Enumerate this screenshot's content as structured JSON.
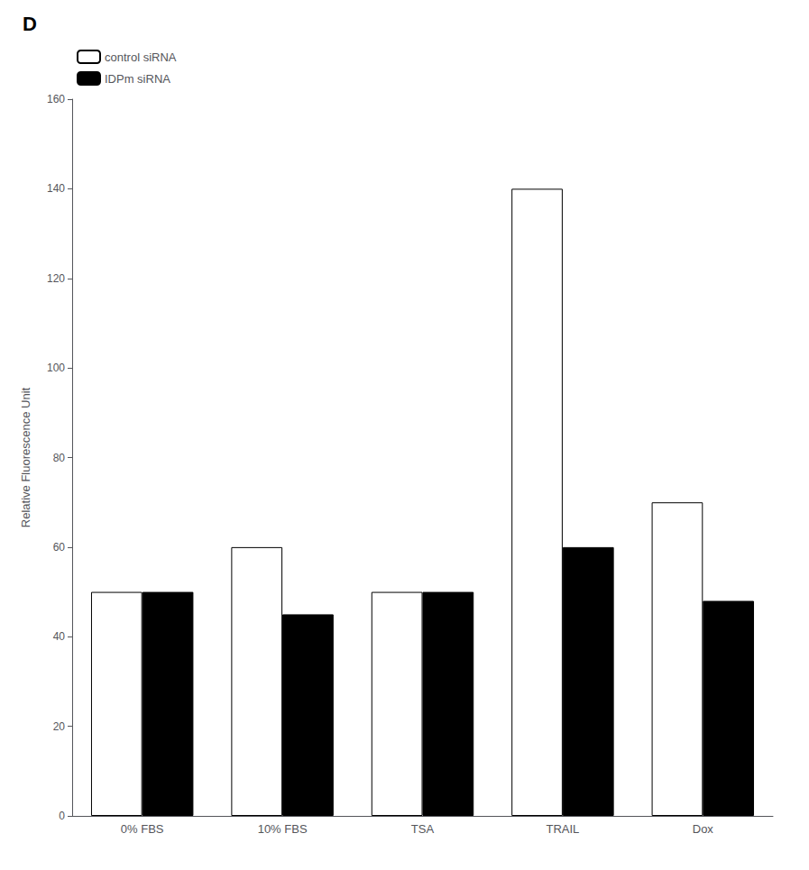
{
  "chart_data": {
    "type": "bar",
    "title": "D",
    "categories": [
      "0% FBS",
      "10% FBS",
      "TSA",
      "TRAIL",
      "Dox"
    ],
    "series": [
      {
        "name": "control siRNA",
        "color": "#ffffff",
        "values": [
          50,
          60,
          50,
          140,
          70
        ]
      },
      {
        "name": "IDPm siRNA",
        "color": "#000000",
        "values": [
          50,
          45,
          50,
          60,
          48
        ]
      }
    ],
    "ylabel": "Relative Fluorescence Unit",
    "ylim": [
      0,
      160
    ],
    "yticks": [
      0,
      20,
      40,
      60,
      80,
      100,
      120,
      140,
      160
    ],
    "legend": "upper left",
    "grid": false
  }
}
